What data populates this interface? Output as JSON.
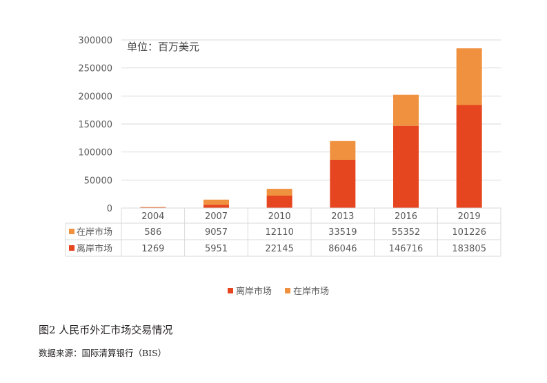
{
  "chart_data": {
    "type": "bar",
    "stacked": true,
    "unit_label": "单位：百万美元",
    "categories": [
      "2004",
      "2007",
      "2010",
      "2013",
      "2016",
      "2019"
    ],
    "series": [
      {
        "name": "离岸市场",
        "color": "#e5451f",
        "values": [
          1269,
          5951,
          22145,
          86046,
          146716,
          183805
        ]
      },
      {
        "name": "在岸市场",
        "color": "#f0913f",
        "values": [
          586,
          9057,
          12110,
          33519,
          55352,
          101226
        ]
      }
    ],
    "ylim": [
      0,
      300000
    ],
    "yticks": [
      "0",
      "50000",
      "100000",
      "150000",
      "200000",
      "250000",
      "300000"
    ],
    "grid": true,
    "data_table": {
      "rows": [
        {
          "label": "在岸市场",
          "color": "#f0913f",
          "values": [
            "586",
            "9057",
            "12110",
            "33519",
            "55352",
            "101226"
          ]
        },
        {
          "label": "离岸市场",
          "color": "#e5451f",
          "values": [
            "1269",
            "5951",
            "22145",
            "86046",
            "146716",
            "183805"
          ]
        }
      ]
    },
    "legend": {
      "placement": "bottom",
      "items": [
        {
          "label": "离岸市场",
          "color": "#e5451f"
        },
        {
          "label": "在岸市场",
          "color": "#f0913f"
        }
      ]
    }
  },
  "caption": "图2  人民币外汇市场交易情况",
  "source": "数据来源：国际清算银行（BIS）"
}
